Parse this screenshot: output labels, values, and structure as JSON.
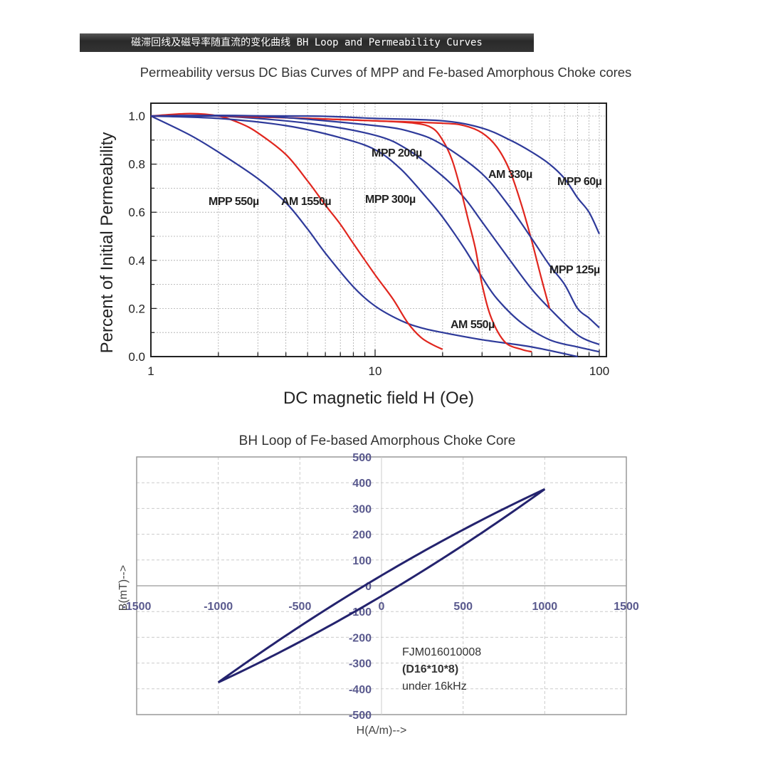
{
  "banner": "磁滞回线及磁导率随直流的变化曲线 BH Loop and Permeability Curves",
  "colors": {
    "mpp": "#2e3a9a",
    "am": "#e0261e",
    "bh_loop": "#24236e",
    "bh_tick": "#5a5a8e"
  },
  "chart_data": [
    {
      "type": "line",
      "title": "Permeability versus DC Bias Curves of MPP and Fe-based Amorphous Choke cores",
      "xlabel": "DC magnetic field  H (Oe)",
      "ylabel": "Percent of Initial Permeability",
      "xscale": "log",
      "xlim": [
        1,
        100
      ],
      "ylim": [
        0,
        1.0
      ],
      "xticks": [
        "1",
        "10",
        "100"
      ],
      "yticks": [
        "0.0",
        "0.2",
        "0.4",
        "0.6",
        "0.8",
        "1.0"
      ],
      "grid": true,
      "series": [
        {
          "name": "MPP 550µ",
          "material": "mpp",
          "x": [
            1,
            1.5,
            2,
            3,
            4,
            5,
            6,
            8,
            10,
            13,
            16,
            20,
            30,
            50,
            80
          ],
          "y": [
            1.0,
            0.92,
            0.85,
            0.74,
            0.64,
            0.53,
            0.43,
            0.29,
            0.21,
            0.15,
            0.12,
            0.1,
            0.07,
            0.04,
            0.0
          ]
        },
        {
          "name": "AM 1550µ",
          "material": "am",
          "x": [
            1,
            1.5,
            2,
            2.5,
            3,
            4,
            5,
            6,
            7,
            8,
            10,
            12,
            14,
            16,
            18,
            20
          ],
          "y": [
            1.0,
            1.01,
            1.0,
            0.97,
            0.93,
            0.84,
            0.73,
            0.63,
            0.55,
            0.47,
            0.34,
            0.24,
            0.14,
            0.08,
            0.05,
            0.03
          ]
        },
        {
          "name": "MPP 300µ",
          "material": "mpp",
          "x": [
            1,
            2,
            4,
            7,
            10,
            13,
            17,
            20,
            25,
            30,
            35,
            45,
            60,
            80,
            100
          ],
          "y": [
            1.0,
            0.99,
            0.96,
            0.91,
            0.86,
            0.78,
            0.66,
            0.58,
            0.45,
            0.33,
            0.24,
            0.14,
            0.07,
            0.04,
            0.02
          ]
        },
        {
          "name": "MPP 200µ",
          "material": "mpp",
          "x": [
            1,
            2,
            5,
            10,
            14,
            20,
            25,
            30,
            40,
            50,
            60,
            80,
            100
          ],
          "y": [
            1.0,
            1.0,
            0.97,
            0.92,
            0.86,
            0.75,
            0.66,
            0.56,
            0.4,
            0.28,
            0.2,
            0.09,
            0.05
          ]
        },
        {
          "name": "AM 550µ",
          "material": "am",
          "x": [
            1,
            2,
            5,
            10,
            15,
            18,
            20,
            22,
            24,
            26,
            28,
            30,
            33,
            38,
            45,
            50
          ],
          "y": [
            1.0,
            1.0,
            0.99,
            0.98,
            0.97,
            0.95,
            0.9,
            0.82,
            0.7,
            0.57,
            0.45,
            0.3,
            0.16,
            0.06,
            0.03,
            0.02
          ]
        },
        {
          "name": "AM 330µ",
          "material": "am",
          "x": [
            1,
            2,
            5,
            10,
            20,
            25,
            30,
            35,
            40,
            45,
            50,
            55,
            60
          ],
          "y": [
            1.0,
            1.0,
            0.99,
            0.98,
            0.97,
            0.96,
            0.93,
            0.87,
            0.77,
            0.63,
            0.48,
            0.33,
            0.2
          ]
        },
        {
          "name": "MPP 125µ",
          "material": "mpp",
          "x": [
            1,
            3,
            10,
            15,
            20,
            30,
            40,
            50,
            60,
            70,
            80,
            90,
            100
          ],
          "y": [
            1.0,
            1.0,
            0.96,
            0.93,
            0.88,
            0.76,
            0.62,
            0.49,
            0.38,
            0.3,
            0.2,
            0.16,
            0.12
          ]
        },
        {
          "name": "MPP 60µ",
          "material": "mpp",
          "x": [
            1,
            5,
            10,
            20,
            30,
            40,
            50,
            60,
            70,
            80,
            90,
            100
          ],
          "y": [
            1.0,
            1.0,
            0.99,
            0.98,
            0.95,
            0.9,
            0.85,
            0.8,
            0.74,
            0.66,
            0.6,
            0.51
          ]
        }
      ]
    },
    {
      "type": "line",
      "title": "BH Loop of Fe-based Amorphous Choke Core",
      "xlabel": "H(A/m)-->",
      "ylabel": "B(mT)-->",
      "xlim": [
        -1500,
        1500
      ],
      "ylim": [
        -500,
        500
      ],
      "xticks": [
        "-1500",
        "-1000",
        "-500",
        "0",
        "500",
        "1000",
        "1500"
      ],
      "yticks": [
        "500",
        "400",
        "300",
        "200",
        "100",
        "0",
        "-100",
        "-200",
        "-300",
        "-400",
        "-500"
      ],
      "grid": true,
      "annotations": [
        "FJM016010008",
        "(D16*10*8)",
        "under 16kHz"
      ],
      "loop": {
        "h_max": 1000,
        "b_max": 375,
        "remanence": 40
      }
    }
  ]
}
